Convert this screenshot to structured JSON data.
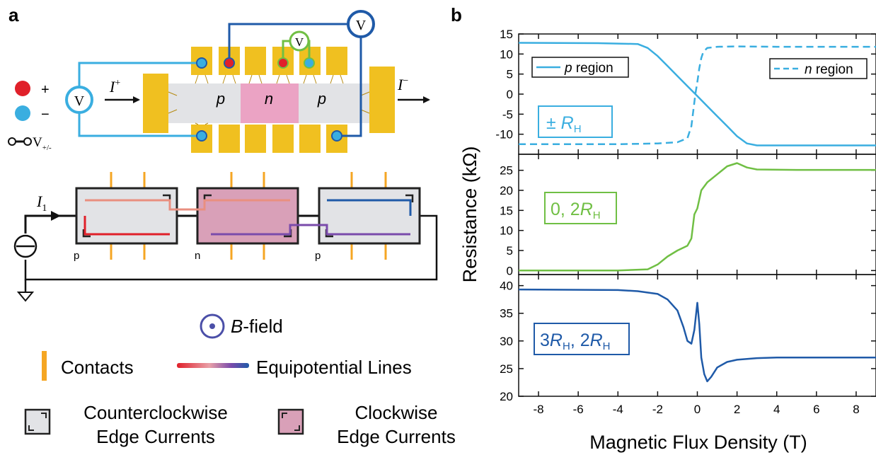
{
  "panel_a": {
    "label": "a",
    "legend_plus": "+",
    "legend_minus": "−",
    "legend_vpm_main": "V",
    "legend_vpm_sub": "+/-",
    "voltmeter_symbol": "V",
    "current_in_main": "I",
    "current_in_sup": "+",
    "current_out_main": "I",
    "current_out_sup": "−",
    "region_p1": "p",
    "region_n": "n",
    "region_p2": "p",
    "circuit_current_main": "I",
    "circuit_current_sub": "1",
    "circuit_p1": "p",
    "circuit_n": "n",
    "circuit_p2": "p",
    "bfield_italic": "B",
    "bfield_rest": "-field",
    "legend_contacts": "Contacts",
    "legend_equipotential": "Equipotential Lines",
    "legend_ccw_line1": "Counterclockwise",
    "legend_ccw_line2": "Edge Currents",
    "legend_cw_line1": "Clockwise",
    "legend_cw_line2": "Edge Currents"
  },
  "panel_b": {
    "label": "b",
    "ylabel": "Resistance (kΩ)",
    "xlabel": "Magnetic Flux Density (T)",
    "x_ticks": [
      "-8",
      "-6",
      "-4",
      "-2",
      "0",
      "2",
      "4",
      "6",
      "8"
    ],
    "top_legend_solid_italic": "p",
    "top_legend_solid_rest": " region",
    "top_legend_dashed_italic": "n",
    "top_legend_dashed_rest": " region",
    "top_box_a": "± ",
    "top_box_R": "R",
    "top_box_H": "H",
    "mid_box_a": "0, 2",
    "mid_box_R": "R",
    "mid_box_H": "H",
    "bot_box_a": "3",
    "bot_box_R1": "R",
    "bot_box_H1": "H",
    "bot_box_b": ", 2",
    "bot_box_R2": "R",
    "bot_box_H2": "H"
  },
  "colors": {
    "gold": "#f0c020",
    "red": "#e0202a",
    "light_blue": "#3aaee0",
    "dark_blue": "#1f5aa8",
    "green": "#70bf44",
    "purple": "#7a4bab",
    "pink": "#eba3c4",
    "gray": "#e2e3e6"
  },
  "chart_data": [
    {
      "type": "line",
      "xlim": [
        -9,
        9
      ],
      "ylim": [
        -15,
        15
      ],
      "y_ticks": [
        15,
        10,
        5,
        0,
        -5,
        -10
      ],
      "series": [
        {
          "name": "p region",
          "style": "solid",
          "color": "#3aaee0",
          "x": [
            -9,
            -5,
            -3,
            -2.5,
            -2,
            -1.5,
            -1,
            -0.5,
            0,
            0.5,
            1,
            1.5,
            2,
            2.5,
            3,
            5,
            9
          ],
          "y": [
            12.8,
            12.7,
            12.5,
            11.5,
            9.5,
            7.0,
            4.5,
            2.0,
            -0.5,
            -3.0,
            -5.5,
            -8.0,
            -10.5,
            -12.3,
            -12.8,
            -12.8,
            -12.8
          ]
        },
        {
          "name": "n region",
          "style": "dashed",
          "color": "#3aaee0",
          "x": [
            -9,
            -4,
            -2,
            -1,
            -0.5,
            -0.3,
            -0.2,
            -0.1,
            0,
            0.1,
            0.2,
            0.3,
            0.5,
            1,
            2,
            4,
            9
          ],
          "y": [
            -12.5,
            -12.5,
            -12.3,
            -12.0,
            -11.0,
            -8.0,
            -4.0,
            0.0,
            3.0,
            6.5,
            9.0,
            10.5,
            11.5,
            11.8,
            11.9,
            11.8,
            11.8
          ]
        }
      ]
    },
    {
      "type": "line",
      "xlim": [
        -9,
        9
      ],
      "ylim": [
        -1,
        29
      ],
      "y_ticks": [
        25,
        20,
        15,
        10,
        5,
        0
      ],
      "series": [
        {
          "style": "solid",
          "color": "#70bf44",
          "x": [
            -9,
            -4,
            -2.5,
            -2,
            -1.5,
            -1,
            -0.5,
            -0.3,
            -0.15,
            0,
            0.2,
            0.5,
            1,
            1.5,
            2,
            2.5,
            3,
            5,
            9
          ],
          "y": [
            0,
            0,
            0.3,
            1.5,
            3.5,
            5.0,
            6.2,
            8.0,
            14.0,
            15.5,
            20.0,
            22.0,
            24.0,
            26.0,
            26.8,
            25.7,
            25.2,
            25.1,
            25.1
          ]
        }
      ]
    },
    {
      "type": "line",
      "xlim": [
        -9,
        9
      ],
      "ylim": [
        20,
        42
      ],
      "y_ticks": [
        40,
        35,
        30,
        25,
        20
      ],
      "series": [
        {
          "style": "solid",
          "color": "#1f5aa8",
          "x": [
            -9,
            -4,
            -3,
            -2,
            -1.5,
            -1,
            -0.7,
            -0.5,
            -0.3,
            -0.15,
            0,
            0.1,
            0.2,
            0.35,
            0.5,
            0.7,
            1,
            1.5,
            2,
            3,
            4,
            9
          ],
          "y": [
            39.3,
            39.2,
            39.0,
            38.5,
            37.5,
            35.5,
            32.5,
            30.0,
            29.5,
            32.0,
            36.9,
            33.0,
            27.0,
            24.0,
            22.7,
            23.5,
            25.2,
            26.2,
            26.6,
            26.9,
            27.0,
            27.0
          ]
        }
      ]
    }
  ]
}
